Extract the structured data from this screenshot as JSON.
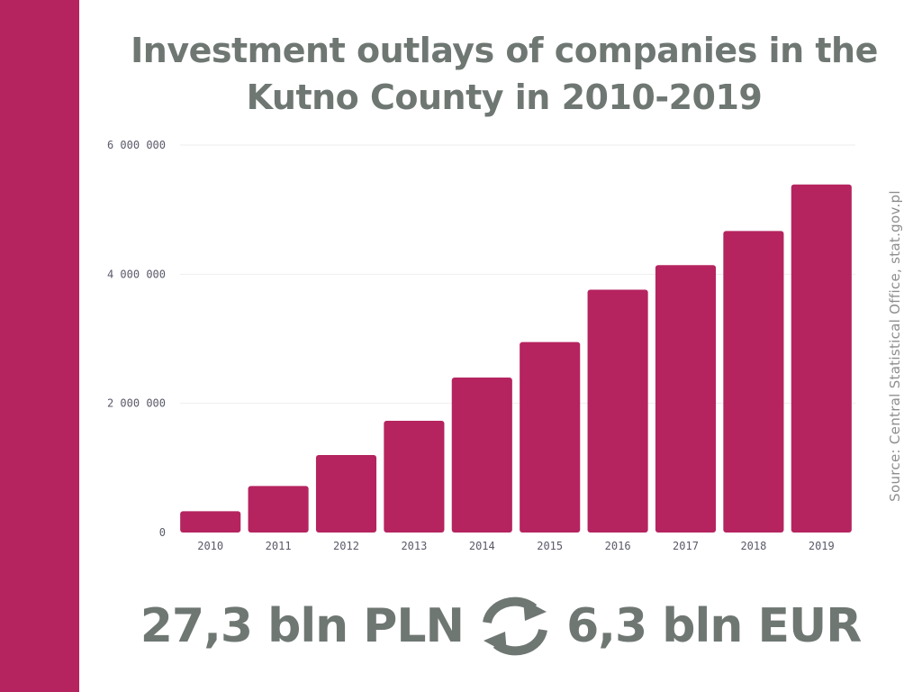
{
  "title": "Investment outlays of companies in the Kutno County in 2010-2019",
  "source": "Source: Central Statistical Office, stat.gov.pl",
  "footer": {
    "left": "27,3 bln PLN",
    "right": "6,3 bln EUR",
    "icon": "exchange-icon"
  },
  "colors": {
    "accent": "#b5245f",
    "text": "#6f7773",
    "tick": "#5a5a6a",
    "grid": "#eeeeee"
  },
  "chart_data": {
    "type": "bar",
    "categories": [
      "2010",
      "2011",
      "2012",
      "2013",
      "2014",
      "2015",
      "2016",
      "2017",
      "2018",
      "2019"
    ],
    "values": [
      330000,
      720000,
      1200000,
      1730000,
      2400000,
      2950000,
      3760000,
      4140000,
      4670000,
      5390000
    ],
    "ylim": [
      0,
      6000000
    ],
    "yticks": [
      0,
      2000000,
      4000000,
      6000000
    ],
    "ytick_labels": [
      "0",
      "2 000 000",
      "4 000 000",
      "6 000 000"
    ],
    "grid": true,
    "legend": false
  }
}
